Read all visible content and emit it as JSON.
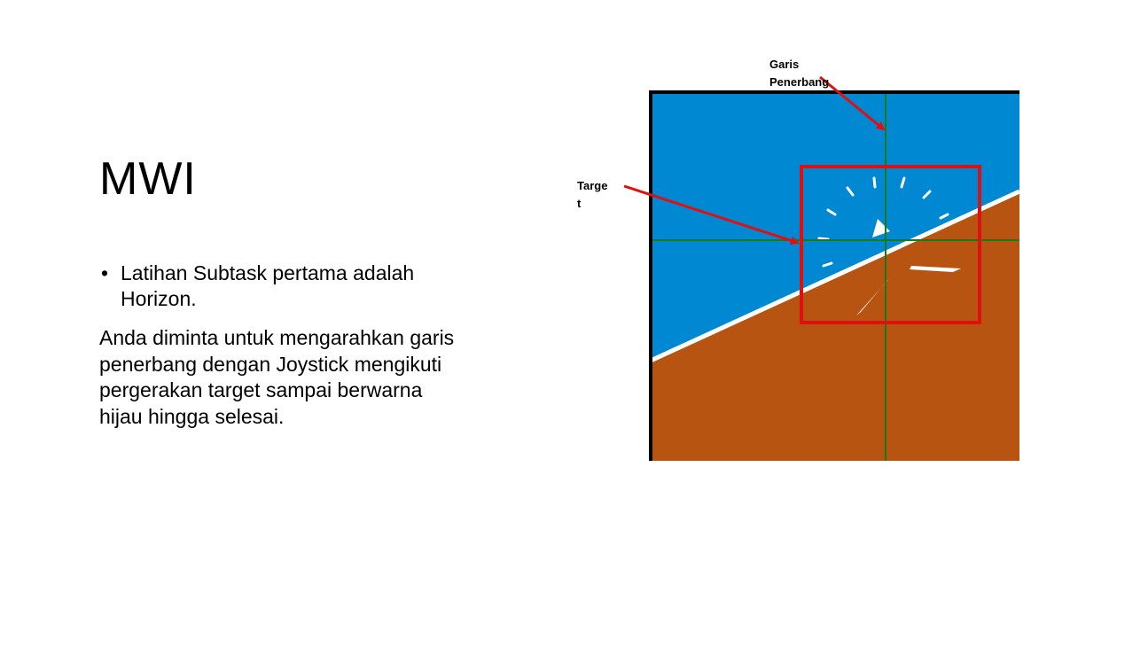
{
  "slide": {
    "title": "MWI",
    "bullets": [
      {
        "text": "Latihan Subtask pertama adalah Horizon."
      }
    ],
    "body": "Anda diminta untuk mengarahkan garis penerbang dengan Joystick mengikuti pergerakan target sampai berwarna hijau hingga selesai."
  },
  "figure": {
    "callouts": {
      "garis_line1": "Garis",
      "garis_line2": "Penerbang",
      "target_line1": "Targe",
      "target_line2": "t"
    },
    "colors": {
      "sky": "#0088d3",
      "ground": "#b85412",
      "horizon_line": "#ffffff",
      "crosshair": "#1a7a1a",
      "target_box": "#e01010",
      "arrow": "#e01010",
      "frame": "#000000"
    }
  }
}
